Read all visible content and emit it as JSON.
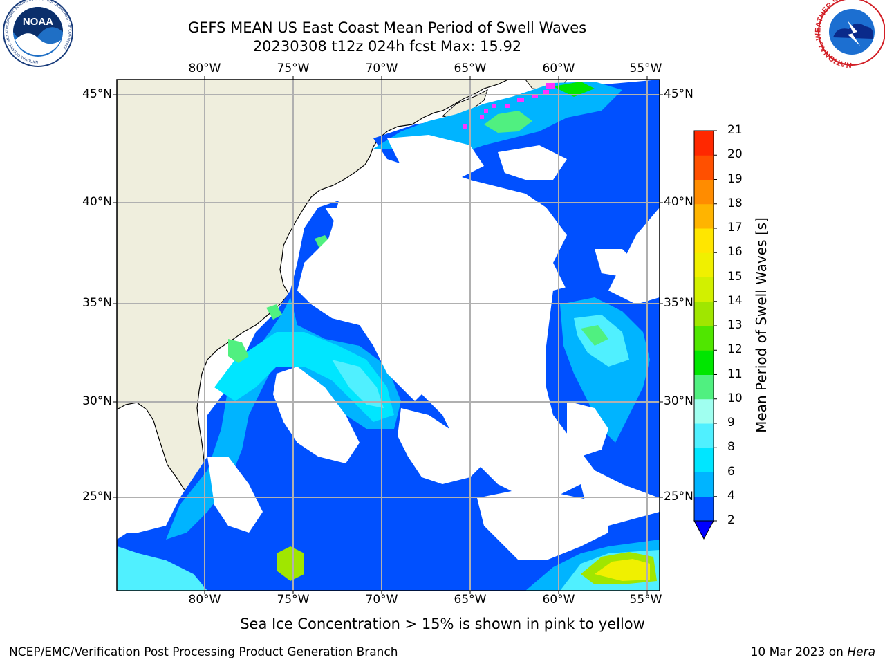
{
  "header": {
    "title_line1": "GEFS MEAN US East Coast Mean Period of Swell Waves",
    "title_line2": "20230308 t12z 024h fcst   Max: 15.92"
  },
  "logos": {
    "left": {
      "text": "NOAA",
      "ring_text": "NATIONAL OCEANIC AND ATMOSPHERIC ADMINISTRATION · U.S. DEPARTMENT OF COMMERCE"
    },
    "right": {
      "ring_text": "NATIONAL WEATHER SERVICE"
    }
  },
  "map": {
    "lon_ticks": [
      "80°W",
      "75°W",
      "70°W",
      "65°W",
      "60°W",
      "55°W"
    ],
    "lat_ticks": [
      "45°N",
      "40°N",
      "35°N",
      "30°N",
      "25°N"
    ],
    "colors": {
      "land": "#efeedd",
      "ocean_missing": "#ffffff",
      "grid": "#b0b0b0",
      "coast": "#000000",
      "sea_ice": "#ff33ff"
    }
  },
  "colorbar": {
    "label": "Mean Period of Swell Waves [s]",
    "ticks": [
      "2",
      "4",
      "6",
      "8",
      "9",
      "10",
      "11",
      "12",
      "13",
      "14",
      "15",
      "16",
      "17",
      "18",
      "19",
      "20",
      "21"
    ],
    "colors": [
      "#0050ff",
      "#00b4ff",
      "#00e6ff",
      "#50f0ff",
      "#a0fff0",
      "#50f080",
      "#00e600",
      "#50e600",
      "#a0e600",
      "#d2f000",
      "#f0f000",
      "#ffe600",
      "#ffb400",
      "#ff8c00",
      "#ff5000",
      "#ff2800",
      "#ff0000"
    ]
  },
  "footer": {
    "ice_note": "Sea Ice Concentration > 15% is shown in pink to yellow",
    "branch": "NCEP/EMC/Verification Post Processing Product Generation Branch",
    "date": "10 Mar 2023 on ",
    "host": "Hera"
  }
}
